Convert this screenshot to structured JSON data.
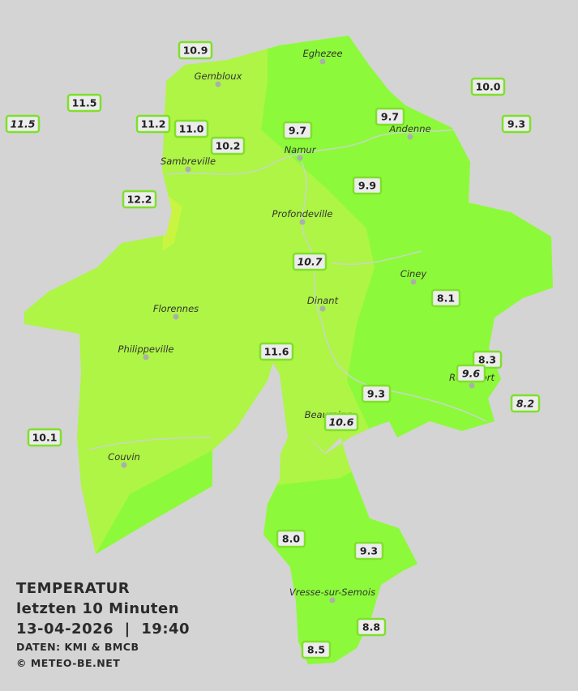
{
  "cities": [
    {
      "name": "Eghezee"
    },
    {
      "name": "Gembloux"
    },
    {
      "name": "Andenne"
    },
    {
      "name": "Namur"
    },
    {
      "name": "Sambreville"
    },
    {
      "name": "Profondeville"
    },
    {
      "name": "Ciney"
    },
    {
      "name": "Dinant"
    },
    {
      "name": "Florennes"
    },
    {
      "name": "Philippeville"
    },
    {
      "name": "Rochefort"
    },
    {
      "name": "Beauraing"
    },
    {
      "name": "Couvin"
    },
    {
      "name": "Vresse-sur-Semois"
    }
  ],
  "stations": [
    {
      "label": "10.9",
      "italic": false
    },
    {
      "label": "11.5",
      "italic": false
    },
    {
      "label": "11.5",
      "italic": true
    },
    {
      "label": "11.2",
      "italic": false
    },
    {
      "label": "11.0",
      "italic": false
    },
    {
      "label": "10.2",
      "italic": false
    },
    {
      "label": "9.7",
      "italic": false
    },
    {
      "label": "9.7",
      "italic": false
    },
    {
      "label": "10.0",
      "italic": false
    },
    {
      "label": "9.3",
      "italic": false
    },
    {
      "label": "9.9",
      "italic": false
    },
    {
      "label": "12.2",
      "italic": false
    },
    {
      "label": "10.7",
      "italic": true
    },
    {
      "label": "8.1",
      "italic": false
    },
    {
      "label": "11.6",
      "italic": false
    },
    {
      "label": "8.3",
      "italic": false
    },
    {
      "label": "9.6",
      "italic": true
    },
    {
      "label": "9.3",
      "italic": false
    },
    {
      "label": "8.2",
      "italic": true
    },
    {
      "label": "10.6",
      "italic": true
    },
    {
      "label": "10.1",
      "italic": false
    },
    {
      "label": "8.0",
      "italic": false
    },
    {
      "label": "9.3",
      "italic": false
    },
    {
      "label": "8.8",
      "italic": false
    },
    {
      "label": "8.5",
      "italic": false
    }
  ],
  "info": {
    "title": "TEMPERATUR",
    "subtitle": "letzten 10 Minuten",
    "datetime": "13-04-2026  |  19:40",
    "source": "DATEN: KMI & BMCB",
    "copyright": "© METEO-BE.NET"
  }
}
